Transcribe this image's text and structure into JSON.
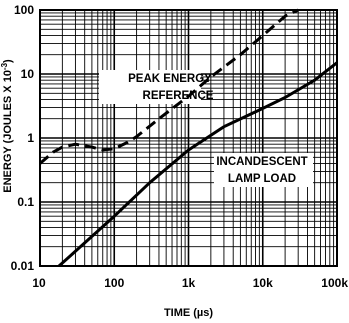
{
  "chart_data": {
    "type": "line",
    "xlabel": "TIME (µs)",
    "ylabel": "ENERGY (JOULES X 10",
    "ylabel_exponent": "-3",
    "ylabel_close": ")",
    "x_scale": "log",
    "y_scale": "log",
    "xlim": [
      10,
      100000
    ],
    "ylim": [
      0.01,
      100
    ],
    "grid": true,
    "x_ticks": [
      {
        "value": 10,
        "label": "10"
      },
      {
        "value": 100,
        "label": "100"
      },
      {
        "value": 1000,
        "label": "1k"
      },
      {
        "value": 10000,
        "label": "10k"
      },
      {
        "value": 100000,
        "label": "100k"
      }
    ],
    "y_ticks": [
      {
        "value": 0.01,
        "label": "0.01"
      },
      {
        "value": 0.1,
        "label": "0.1"
      },
      {
        "value": 1,
        "label": "1"
      },
      {
        "value": 10,
        "label": "10"
      },
      {
        "value": 100,
        "label": "100"
      }
    ],
    "series": [
      {
        "name": "PEAK ENERGY REFERENCE",
        "style": "dashed",
        "x": [
          10,
          15,
          20,
          30,
          50,
          70,
          100,
          150,
          200,
          400,
          1000,
          2000,
          5000,
          10000,
          20000,
          30000
        ],
        "y": [
          0.4,
          0.6,
          0.72,
          0.8,
          0.72,
          0.65,
          0.68,
          0.85,
          1.05,
          2.0,
          4.5,
          9.0,
          20,
          40,
          80,
          100
        ]
      },
      {
        "name": "INCANDESCENT LAMP LOAD",
        "style": "solid",
        "x": [
          18,
          30,
          50,
          100,
          300,
          1000,
          3000,
          10000,
          20000,
          50000,
          100000
        ],
        "y": [
          0.01,
          0.017,
          0.029,
          0.06,
          0.2,
          0.65,
          1.5,
          2.9,
          4.3,
          8.0,
          15
        ]
      }
    ],
    "annotations": [
      {
        "lines": [
          "PEAK ENERGY",
          "REFERENCE"
        ],
        "series": "PEAK ENERGY REFERENCE"
      },
      {
        "lines": [
          "INCANDESCENT",
          "LAMP LOAD"
        ],
        "series": "INCANDESCENT LAMP LOAD"
      }
    ]
  }
}
